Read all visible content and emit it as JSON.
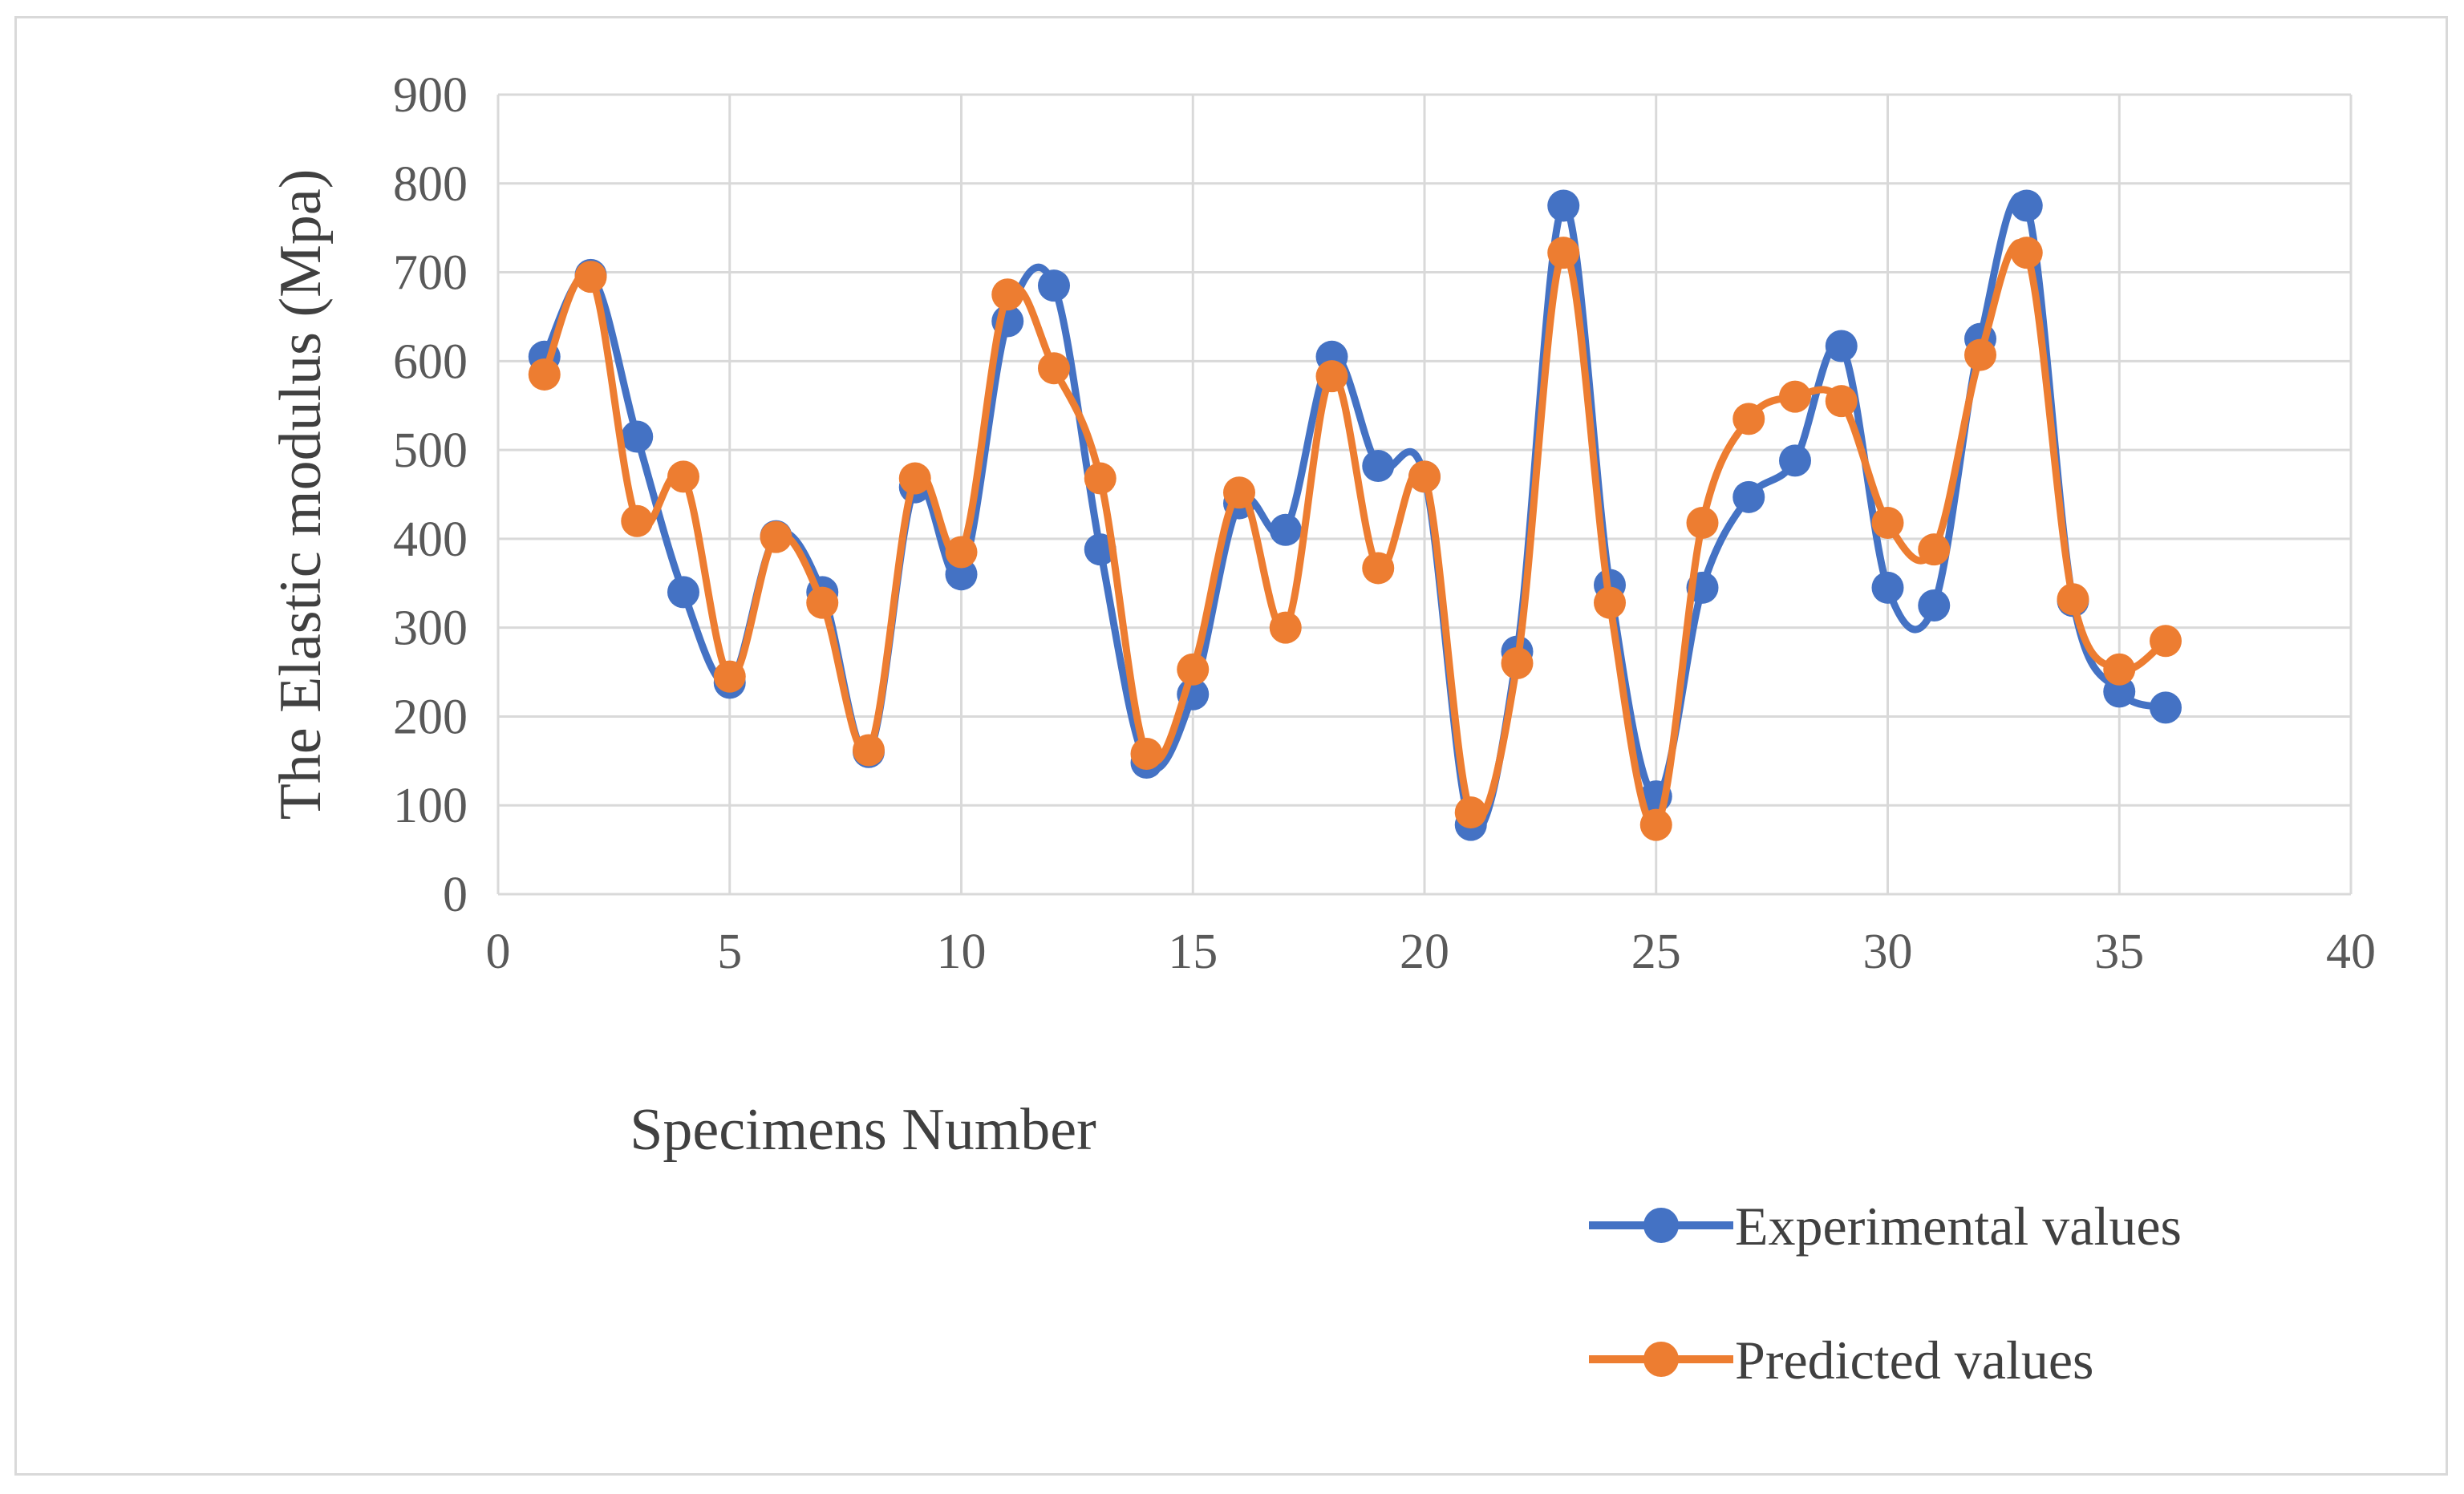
{
  "chart_data": {
    "type": "line",
    "title": "",
    "xlabel": "Specimens Number",
    "ylabel": "The Elastic modulus (Mpa)",
    "xlim": [
      0,
      40
    ],
    "ylim": [
      0,
      900
    ],
    "xticks": [
      0,
      5,
      10,
      15,
      20,
      25,
      30,
      35,
      40
    ],
    "yticks": [
      0,
      100,
      200,
      300,
      400,
      500,
      600,
      700,
      800,
      900
    ],
    "grid": true,
    "smooth": true,
    "legend_position": "bottom-right",
    "x": [
      1,
      2,
      3,
      4,
      5,
      6,
      7,
      8,
      9,
      10,
      11,
      12,
      13,
      14,
      15,
      16,
      17,
      18,
      19,
      20,
      21,
      22,
      23,
      24,
      25,
      26,
      27,
      28,
      29,
      30,
      31,
      32,
      33,
      34,
      35,
      36
    ],
    "series": [
      {
        "name": "Experimental values",
        "color": "#4472C4",
        "values": [
          605,
          697,
          515,
          340,
          238,
          403,
          340,
          160,
          458,
          360,
          645,
          685,
          388,
          148,
          225,
          440,
          410,
          605,
          482,
          470,
          78,
          273,
          775,
          348,
          110,
          345,
          447,
          488,
          617,
          345,
          325,
          625,
          775,
          330,
          228,
          210
        ]
      },
      {
        "name": "Predicted values",
        "color": "#ED7D31",
        "values": [
          585,
          695,
          420,
          470,
          245,
          402,
          328,
          162,
          468,
          385,
          675,
          592,
          468,
          158,
          253,
          452,
          300,
          583,
          367,
          470,
          92,
          260,
          722,
          328,
          78,
          418,
          535,
          560,
          555,
          418,
          388,
          607,
          722,
          332,
          253,
          285
        ]
      }
    ]
  }
}
